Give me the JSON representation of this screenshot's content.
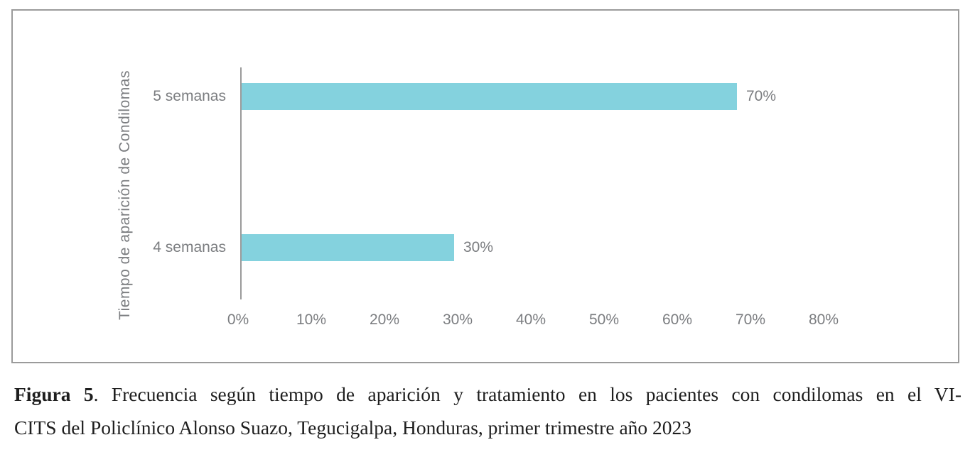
{
  "figure": {
    "caption": {
      "label": "Figura 5",
      "line1_rest": ". Frecuencia según tiempo de aparición y tratamiento en los pacientes con condilomas en el VI-",
      "line2": "CITS del Policlínico Alonso Suazo, Tegucigalpa, Honduras, primer trimestre año 2023"
    }
  },
  "chart_data": {
    "type": "bar",
    "orientation": "horizontal",
    "title": "",
    "xlabel": "",
    "ylabel": "Tiempo de aparición de Condilomas",
    "categories": [
      "5 semanas",
      "4 semanas"
    ],
    "values": [
      70,
      30
    ],
    "value_labels": [
      "70%",
      "30%"
    ],
    "x_ticks": [
      "0%",
      "10%",
      "20%",
      "30%",
      "40%",
      "50%",
      "60%",
      "70%",
      "80%"
    ],
    "xlim": [
      0,
      80
    ],
    "grid": false,
    "legend": false,
    "bar_color": "#84d2de",
    "axis_color": "#9b9b9b",
    "label_color": "#7b7d80"
  }
}
